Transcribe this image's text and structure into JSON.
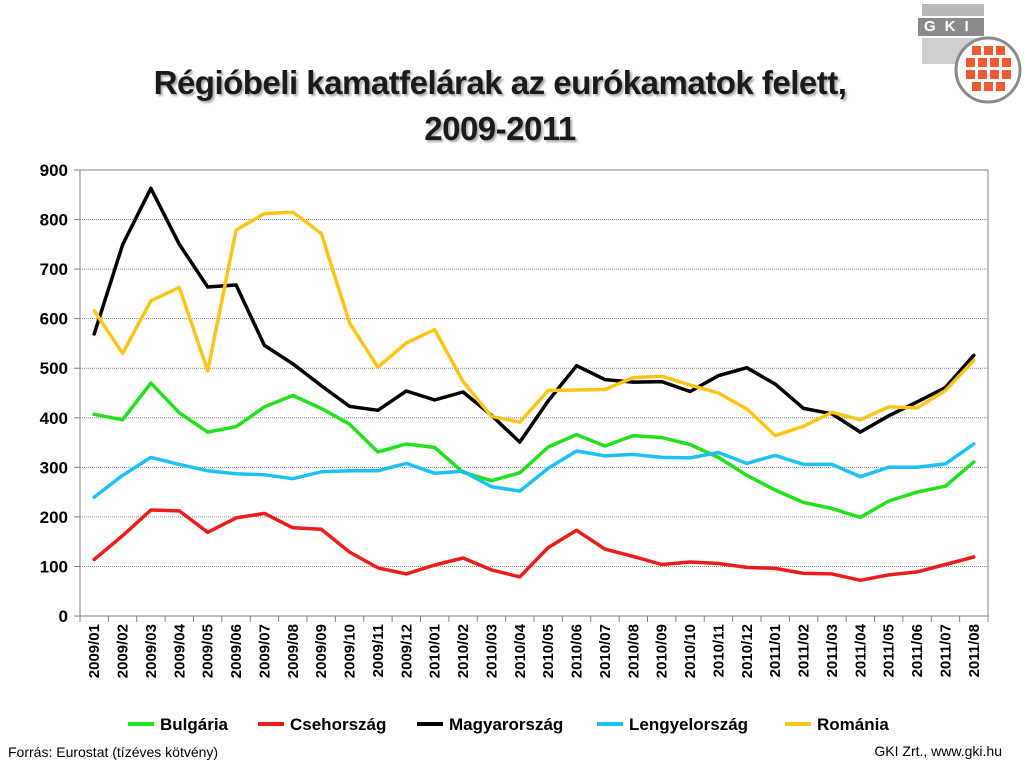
{
  "title_line1": "Régióbeli kamatfelárak az eurókamatok felett,",
  "title_line2": "2009-2011",
  "logo_text": "GKI",
  "source": "Forrás: Eurostat (tízéves kötvény)",
  "credit": "GKI Zrt., www.gki.hu",
  "colors": {
    "grid": "#8c8c8c",
    "axis": "#808080",
    "logo_red": "#ef5a34",
    "logo_gray": "#8a8a8a"
  },
  "chart_data": {
    "type": "line",
    "ylim": [
      0,
      900
    ],
    "yticks": [
      0,
      100,
      200,
      300,
      400,
      500,
      600,
      700,
      800,
      900
    ],
    "grid": true,
    "legend_position": "bottom",
    "categories": [
      "2009/01",
      "2009/02",
      "2009/03",
      "2009/04",
      "2009/05",
      "2009/06",
      "2009/07",
      "2009/08",
      "2009/09",
      "2009/10",
      "2009/11",
      "2009/12",
      "2010/01",
      "2010/02",
      "2010/03",
      "2010/04",
      "2010/05",
      "2010/06",
      "2010/07",
      "2010/08",
      "2010/09",
      "2010/10",
      "2010/11",
      "2010/12",
      "2011/01",
      "2011/02",
      "2011/03",
      "2011/04",
      "2011/05",
      "2011/06",
      "2011/07",
      "2011/08"
    ],
    "series": [
      {
        "name": "Bulgária",
        "color": "#22e01c",
        "values": [
          407,
          396,
          470,
          410,
          371,
          382,
          422,
          445,
          419,
          387,
          331,
          347,
          340,
          290,
          273,
          289,
          341,
          366,
          343,
          364,
          360,
          346,
          320,
          284,
          254,
          229,
          217,
          199,
          232,
          250,
          262,
          311
        ]
      },
      {
        "name": "Csehország",
        "color": "#ea1c1c",
        "values": [
          114,
          162,
          214,
          212,
          169,
          198,
          207,
          178,
          175,
          129,
          97,
          85,
          103,
          117,
          93,
          79,
          138,
          173,
          135,
          120,
          104,
          109,
          106,
          98,
          96,
          86,
          85,
          72,
          83,
          89,
          104,
          119
        ]
      },
      {
        "name": "Magyarország",
        "color": "#000000",
        "values": [
          569,
          749,
          863,
          750,
          664,
          668,
          546,
          509,
          465,
          423,
          415,
          454,
          436,
          452,
          405,
          351,
          434,
          505,
          477,
          472,
          473,
          453,
          485,
          501,
          468,
          419,
          408,
          371,
          404,
          432,
          461,
          526
        ]
      },
      {
        "name": "Lengyelország",
        "color": "#1ec0f2",
        "values": [
          240,
          284,
          320,
          306,
          293,
          287,
          285,
          277,
          291,
          293,
          293,
          308,
          288,
          292,
          261,
          252,
          298,
          333,
          323,
          326,
          320,
          319,
          330,
          308,
          324,
          306,
          306,
          281,
          300,
          300,
          307,
          347
        ]
      },
      {
        "name": "Románia",
        "color": "#fbc417",
        "values": [
          616,
          530,
          636,
          663,
          495,
          779,
          812,
          815,
          772,
          591,
          502,
          551,
          578,
          473,
          403,
          391,
          455,
          456,
          457,
          481,
          484,
          466,
          450,
          418,
          364,
          383,
          411,
          396,
          422,
          420,
          455,
          516
        ]
      }
    ]
  }
}
